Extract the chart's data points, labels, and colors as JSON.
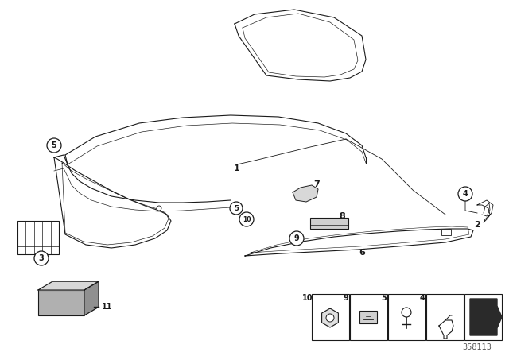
{
  "background_color": "#ffffff",
  "part_number": "358113",
  "dark": "#1a1a1a",
  "gray": "#888888",
  "light_gray": "#cccccc",
  "mid_gray": "#b0b0b0",
  "dark_gray": "#909090"
}
